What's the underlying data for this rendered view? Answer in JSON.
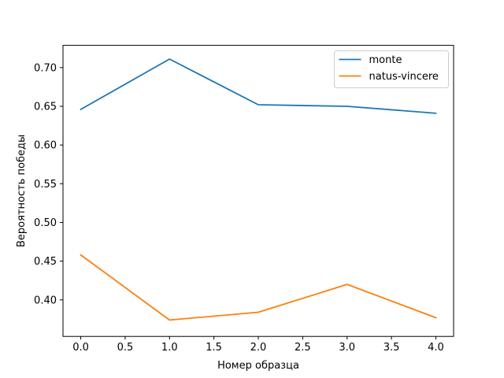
{
  "chart_data": {
    "type": "line",
    "xlabel": "Номер образца",
    "ylabel": "Вероятность победы",
    "xlim": [
      -0.2,
      4.2
    ],
    "ylim": [
      0.3528,
      0.7287
    ],
    "x_ticks": [
      0.0,
      0.5,
      1.0,
      1.5,
      2.0,
      2.5,
      3.0,
      3.5,
      4.0
    ],
    "x_tick_labels": [
      "0.0",
      "0.5",
      "1.0",
      "1.5",
      "2.0",
      "2.5",
      "3.0",
      "3.5",
      "4.0"
    ],
    "y_ticks": [
      0.4,
      0.45,
      0.5,
      0.55,
      0.6,
      0.65,
      0.7
    ],
    "y_tick_labels": [
      "0.40",
      "0.45",
      "0.50",
      "0.55",
      "0.60",
      "0.65",
      "0.70"
    ],
    "x": [
      0,
      1,
      2,
      3,
      4
    ],
    "series": [
      {
        "name": "monte",
        "color": "#1f77b4",
        "values": [
          0.646,
          0.711,
          0.652,
          0.65,
          0.641
        ]
      },
      {
        "name": "natus-vincere",
        "color": "#ff7f0e",
        "values": [
          0.458,
          0.374,
          0.384,
          0.42,
          0.377
        ]
      }
    ],
    "legend_position": "top-right",
    "grid": false
  }
}
